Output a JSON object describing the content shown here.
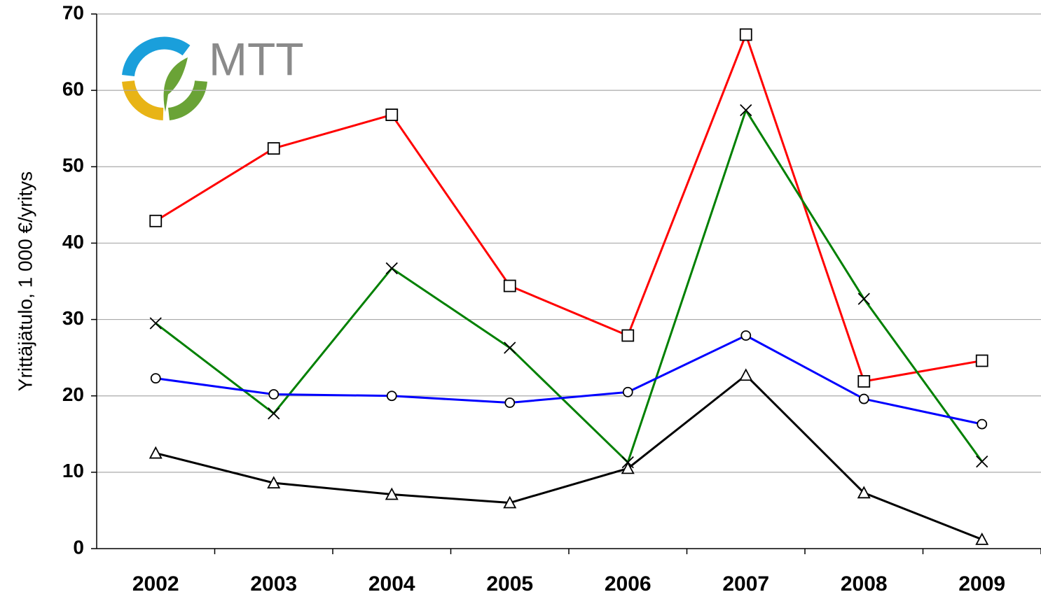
{
  "chart_data": {
    "type": "line",
    "y_label": "Yrittäjätulo, 1 000 €/yritys",
    "logo": "MTT",
    "categories": [
      "2002",
      "2003",
      "2004",
      "2005",
      "2006",
      "2007",
      "2008",
      "2009"
    ],
    "series": [
      {
        "color": "#ff0000",
        "marker": "square",
        "values": [
          42.9,
          52.4,
          56.8,
          34.4,
          27.9,
          67.3,
          21.9,
          24.6
        ]
      },
      {
        "color": "#008000",
        "marker": "x",
        "values": [
          29.5,
          17.7,
          36.7,
          26.3,
          11.3,
          57.4,
          32.7,
          11.4
        ]
      },
      {
        "color": "#0000ff",
        "marker": "circle",
        "values": [
          22.3,
          20.2,
          20.0,
          19.1,
          20.5,
          27.9,
          19.6,
          16.3
        ]
      },
      {
        "color": "#000000",
        "marker": "triangle",
        "values": [
          12.5,
          8.6,
          7.1,
          6.0,
          10.5,
          22.7,
          7.3,
          1.2
        ]
      }
    ],
    "ylim": [
      0,
      70
    ],
    "yticks": [
      0,
      10,
      20,
      30,
      40,
      50,
      60,
      70
    ],
    "grid": true
  }
}
